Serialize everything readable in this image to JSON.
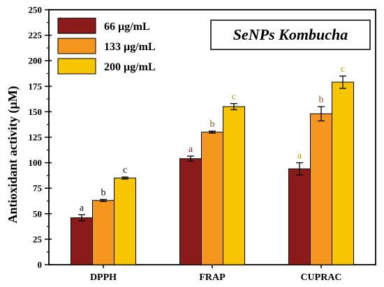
{
  "chart_data": {
    "type": "bar",
    "title": "SeNPs Kombucha",
    "xlabel": "",
    "ylabel": "Antioxidant activity (µM)",
    "ylim": [
      0,
      250
    ],
    "y_ticks": [
      0,
      25,
      50,
      75,
      100,
      125,
      150,
      175,
      200,
      225,
      250
    ],
    "grid": false,
    "legend_position": "top-left",
    "categories": [
      "DPPH",
      "FRAP",
      "CUPRAC"
    ],
    "series": [
      {
        "name": "66 µg/mL",
        "color": "#8b1a1a",
        "values": [
          46,
          104,
          94
        ],
        "errors": [
          3,
          2.5,
          6
        ],
        "labels": [
          "a",
          "a",
          "a"
        ]
      },
      {
        "name": "133 µg/mL",
        "color": "#f5961e",
        "values": [
          63,
          130,
          148
        ],
        "errors": [
          1,
          1,
          7
        ],
        "labels": [
          "b",
          "b",
          "b"
        ]
      },
      {
        "name": "200 µg/mL",
        "color": "#f7c600",
        "values": [
          85,
          155,
          179
        ],
        "errors": [
          1,
          3,
          6
        ],
        "labels": [
          "c",
          "c",
          "c"
        ]
      }
    ],
    "label_colors": [
      "#000000",
      "#8b5a1a",
      "#c8a000"
    ]
  }
}
